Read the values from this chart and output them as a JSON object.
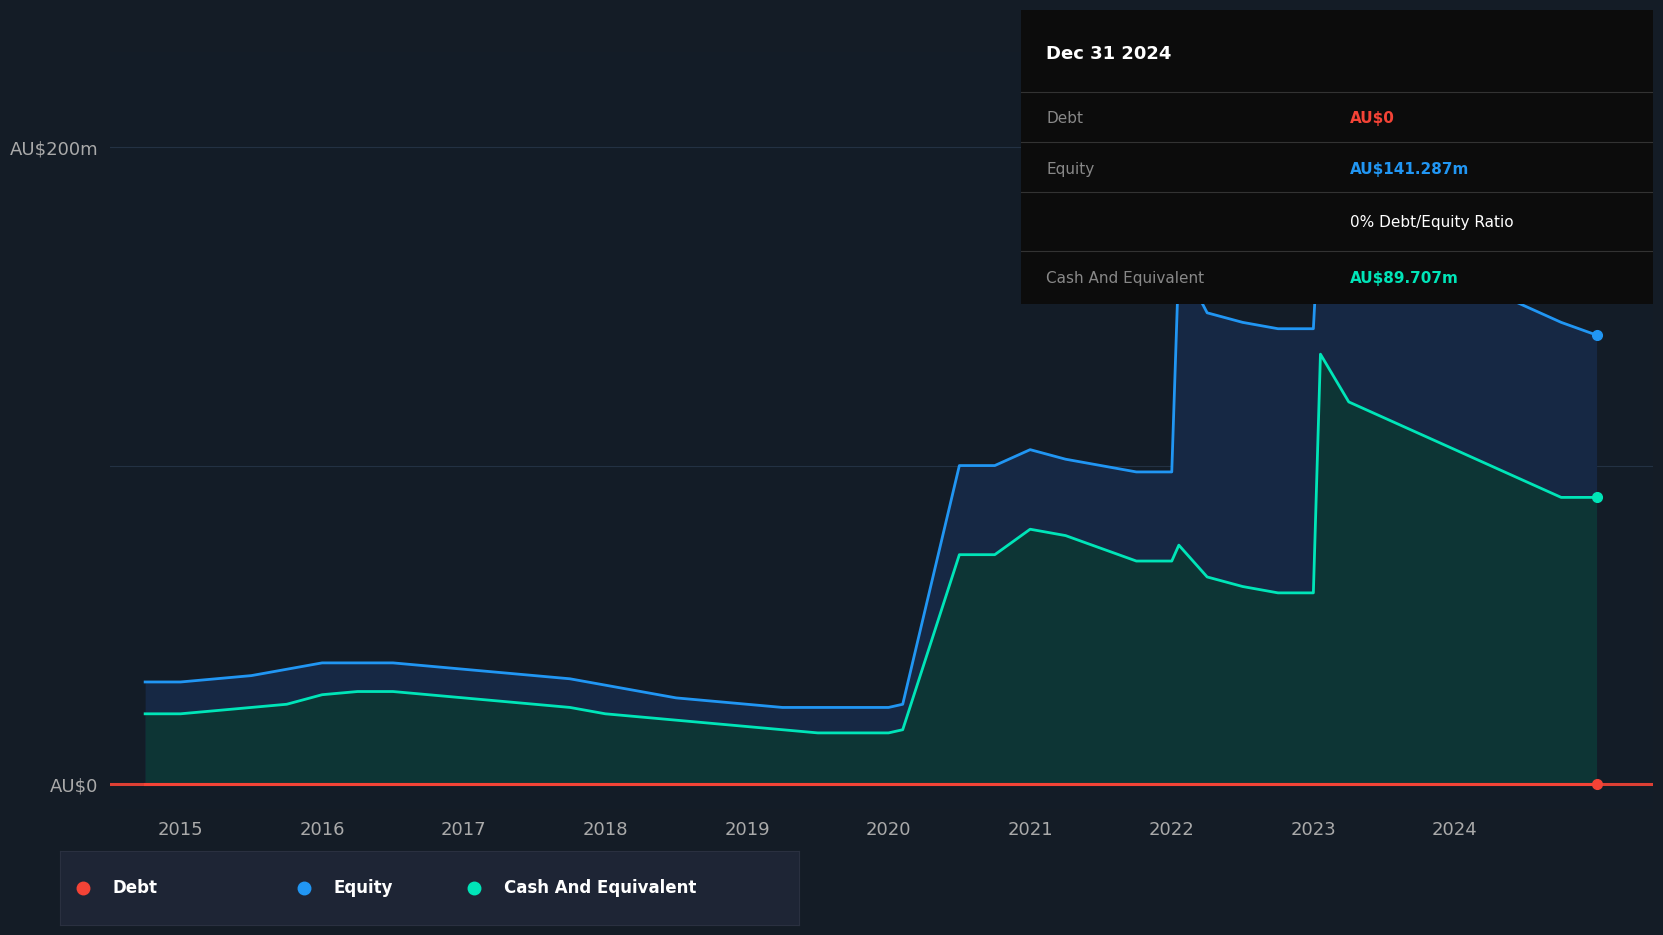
{
  "bg_color": "#141c26",
  "plot_bg_color": "#131c27",
  "ylabel_200": "AU$200m",
  "ylabel_0": "AU$0",
  "x_ticks": [
    2015,
    2016,
    2017,
    2018,
    2019,
    2020,
    2021,
    2022,
    2023,
    2024
  ],
  "ylim": [
    -8,
    230
  ],
  "xlim": [
    2014.5,
    2025.4
  ],
  "equity_color": "#2196f3",
  "cash_color": "#00e5b8",
  "debt_color": "#f44336",
  "equity_fill": "#162844",
  "cash_fill": "#0d3535",
  "dates": [
    2014.75,
    2015.0,
    2015.25,
    2015.5,
    2015.75,
    2016.0,
    2016.25,
    2016.5,
    2016.75,
    2017.0,
    2017.25,
    2017.5,
    2017.75,
    2018.0,
    2018.25,
    2018.5,
    2018.75,
    2019.0,
    2019.25,
    2019.5,
    2019.75,
    2020.0,
    2020.1,
    2020.5,
    2020.75,
    2021.0,
    2021.25,
    2021.5,
    2021.75,
    2022.0,
    2022.05,
    2022.25,
    2022.5,
    2022.75,
    2023.0,
    2023.05,
    2023.25,
    2023.5,
    2023.75,
    2024.0,
    2024.25,
    2024.5,
    2024.75,
    2025.0
  ],
  "equity": [
    32,
    32,
    33,
    34,
    36,
    38,
    38,
    38,
    37,
    36,
    35,
    34,
    33,
    31,
    29,
    27,
    26,
    25,
    24,
    24,
    24,
    24,
    25,
    100,
    100,
    105,
    102,
    100,
    98,
    98,
    165,
    148,
    145,
    143,
    143,
    185,
    170,
    165,
    162,
    160,
    155,
    150,
    145,
    141
  ],
  "cash": [
    22,
    22,
    23,
    24,
    25,
    28,
    29,
    29,
    28,
    27,
    26,
    25,
    24,
    22,
    21,
    20,
    19,
    18,
    17,
    16,
    16,
    16,
    17,
    72,
    72,
    80,
    78,
    74,
    70,
    70,
    75,
    65,
    62,
    60,
    60,
    135,
    120,
    115,
    110,
    105,
    100,
    95,
    90,
    90
  ],
  "debt": [
    0,
    0,
    0,
    0,
    0,
    0,
    0,
    0,
    0,
    0,
    0,
    0,
    0,
    0,
    0,
    0,
    0,
    0,
    0,
    0,
    0,
    0,
    0,
    0,
    0,
    0,
    0,
    0,
    0,
    0,
    0,
    0,
    0,
    0,
    0,
    0,
    0,
    0,
    0,
    0,
    0,
    0,
    0,
    0
  ],
  "tooltip_title": "Dec 31 2024",
  "tooltip_debt_label": "Debt",
  "tooltip_debt_value": "AU$0",
  "tooltip_equity_label": "Equity",
  "tooltip_equity_value": "AU$141.287m",
  "tooltip_ratio": "0% Debt/Equity Ratio",
  "tooltip_cash_label": "Cash And Equivalent",
  "tooltip_cash_value": "AU$89.707m",
  "legend_items": [
    {
      "label": "Debt",
      "color": "#f44336"
    },
    {
      "label": "Equity",
      "color": "#2196f3"
    },
    {
      "label": "Cash And Equivalent",
      "color": "#00e5b8"
    }
  ]
}
